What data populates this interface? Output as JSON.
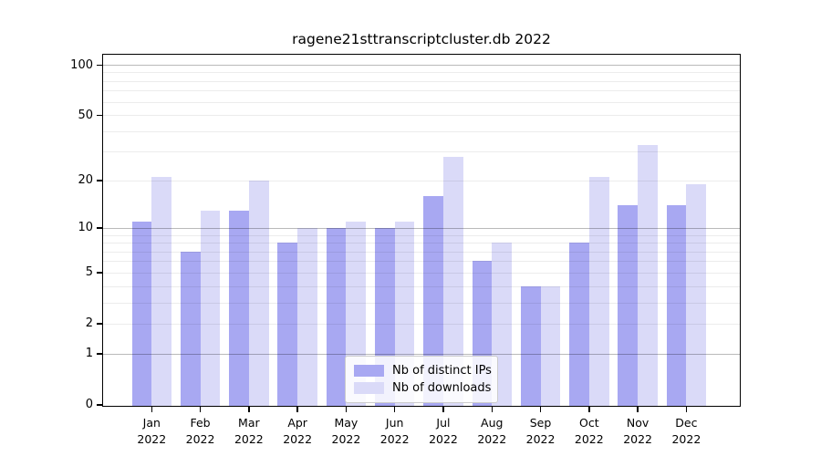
{
  "title": "ragene21sttranscriptcluster.db 2022",
  "legend": {
    "items": [
      {
        "label": "Nb of distinct IPs",
        "color": "#a8a8f2"
      },
      {
        "label": "Nb of downloads",
        "color": "#dadaf8"
      }
    ]
  },
  "chart_data": {
    "type": "bar",
    "title": "ragene21sttranscriptcluster.db 2022",
    "categories": [
      "Jan 2022",
      "Feb 2022",
      "Mar 2022",
      "Apr 2022",
      "May 2022",
      "Jun 2022",
      "Jul 2022",
      "Aug 2022",
      "Sep 2022",
      "Oct 2022",
      "Nov 2022",
      "Dec 2022"
    ],
    "series": [
      {
        "name": "Nb of distinct IPs",
        "color": "#a8a8f2",
        "values": [
          11,
          7,
          13,
          8,
          10,
          10,
          16,
          6,
          4,
          8,
          14,
          14
        ]
      },
      {
        "name": "Nb of downloads",
        "color": "#dadaf8",
        "values": [
          21,
          13,
          20,
          10,
          11,
          11,
          28,
          8,
          4,
          21,
          33,
          19
        ]
      }
    ],
    "xlabel": "",
    "ylabel": "",
    "yscale": "log1p",
    "ylim": [
      0,
      115
    ],
    "yticks_labeled": [
      0,
      1,
      2,
      5,
      10,
      20,
      50,
      100
    ],
    "gridlines_major": [
      1,
      10,
      100
    ],
    "gridlines_minor": [
      2,
      3,
      4,
      5,
      6,
      7,
      8,
      9,
      20,
      30,
      40,
      50,
      60,
      70,
      80,
      90
    ],
    "legend_position": "lower center",
    "grid": true
  }
}
